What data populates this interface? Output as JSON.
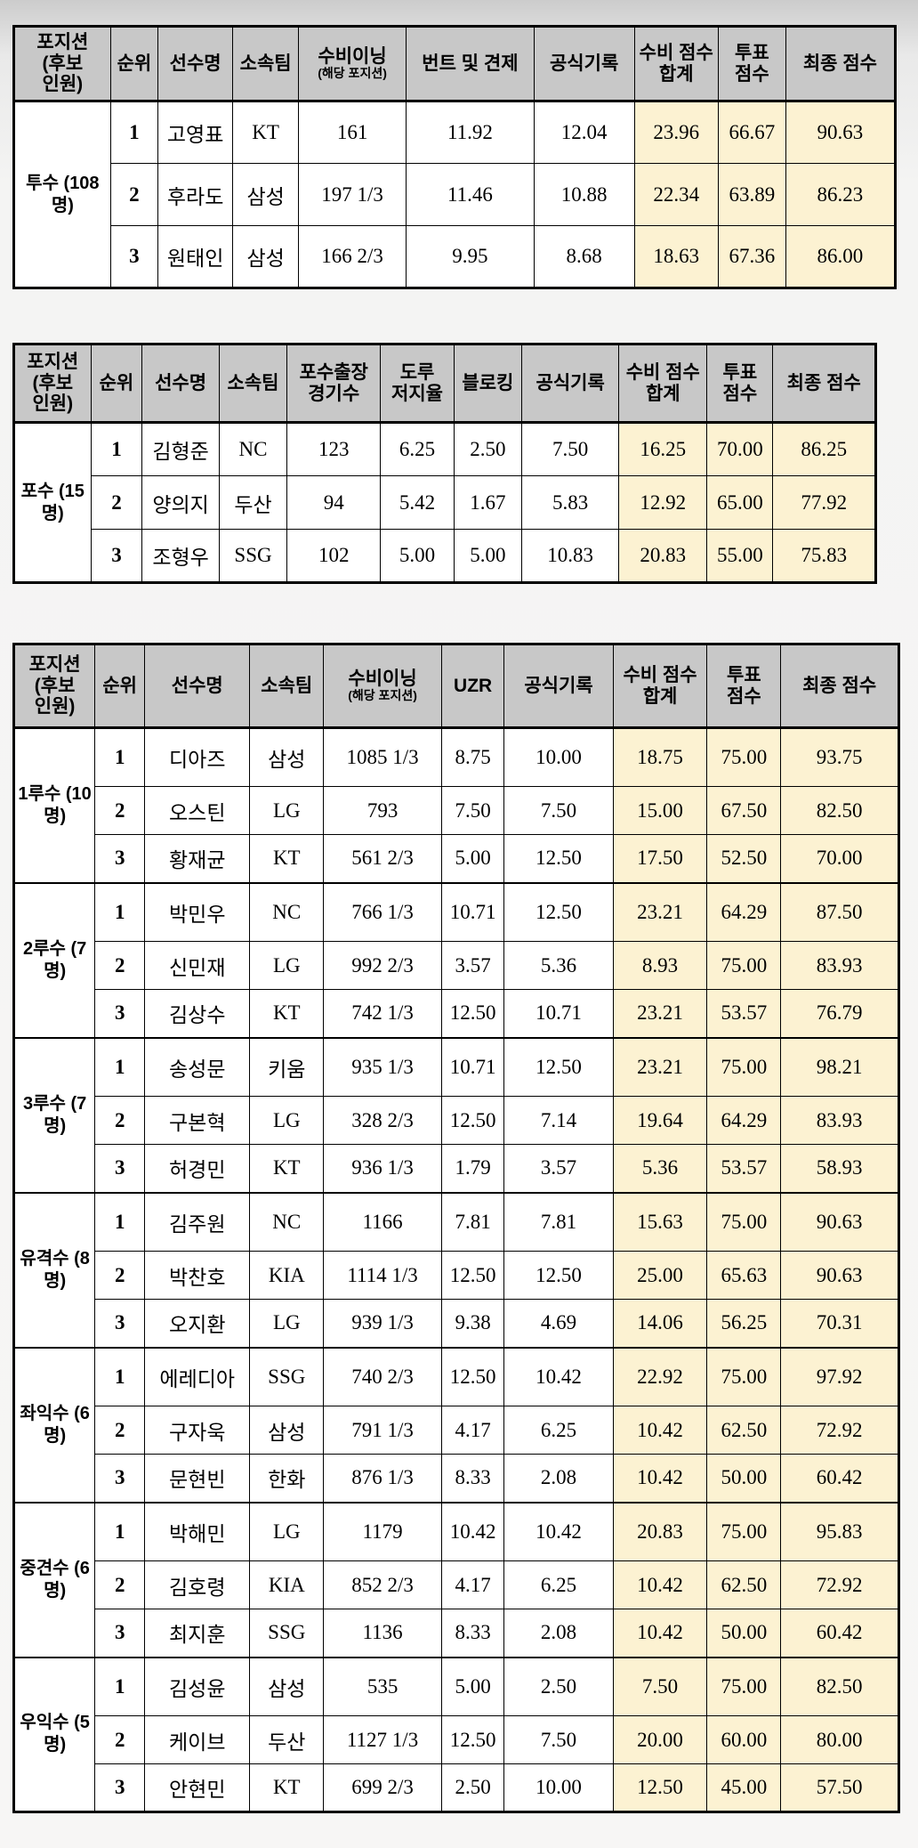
{
  "colors": {
    "header_bg": "#c8c8c8",
    "cream": "#fcf2d2",
    "border": "#000000",
    "cell_bg": "#ffffff"
  },
  "tables": [
    {
      "name": "pitcher-awards",
      "headers": [
        {
          "lines": [
            "포지션",
            "(후보",
            "인원)"
          ]
        },
        {
          "lines": [
            "순위"
          ]
        },
        {
          "lines": [
            "선수명"
          ]
        },
        {
          "lines": [
            "소속팀"
          ]
        },
        {
          "lines": [
            "수비이닝"
          ],
          "sub": "(해당 포지션)"
        },
        {
          "lines": [
            "번트 및 견제"
          ]
        },
        {
          "lines": [
            "공식기록"
          ]
        },
        {
          "lines": [
            "수비 점수",
            "합계"
          ]
        },
        {
          "lines": [
            "투표",
            "점수"
          ]
        },
        {
          "lines": [
            "최종 점수"
          ]
        }
      ],
      "groups": [
        {
          "position": "투수 (108명)",
          "rows": [
            [
              "1",
              "고영표",
              "KT",
              "161",
              "11.92",
              "12.04",
              "23.96",
              "66.67",
              "90.63"
            ],
            [
              "2",
              "후라도",
              "삼성",
              "197 1/3",
              "11.46",
              "10.88",
              "22.34",
              "63.89",
              "86.23"
            ],
            [
              "3",
              "원태인",
              "삼성",
              "166 2/3",
              "9.95",
              "8.68",
              "18.63",
              "67.36",
              "86.00"
            ]
          ]
        }
      ]
    },
    {
      "name": "catcher-awards",
      "headers": [
        {
          "lines": [
            "포지션",
            "(후보",
            "인원)"
          ]
        },
        {
          "lines": [
            "순위"
          ]
        },
        {
          "lines": [
            "선수명"
          ]
        },
        {
          "lines": [
            "소속팀"
          ]
        },
        {
          "lines": [
            "포수출장",
            "경기수"
          ]
        },
        {
          "lines": [
            "도루",
            "저지율"
          ]
        },
        {
          "lines": [
            "블로킹"
          ]
        },
        {
          "lines": [
            "공식기록"
          ]
        },
        {
          "lines": [
            "수비 점수",
            "합계"
          ]
        },
        {
          "lines": [
            "투표",
            "점수"
          ]
        },
        {
          "lines": [
            "최종 점수"
          ]
        }
      ],
      "groups": [
        {
          "position": "포수 (15명)",
          "rows": [
            [
              "1",
              "김형준",
              "NC",
              "123",
              "6.25",
              "2.50",
              "7.50",
              "16.25",
              "70.00",
              "86.25"
            ],
            [
              "2",
              "양의지",
              "두산",
              "94",
              "5.42",
              "1.67",
              "5.83",
              "12.92",
              "65.00",
              "77.92"
            ],
            [
              "3",
              "조형우",
              "SSG",
              "102",
              "5.00",
              "5.00",
              "10.83",
              "20.83",
              "55.00",
              "75.83"
            ]
          ]
        }
      ]
    },
    {
      "name": "fielder-awards",
      "headers": [
        {
          "lines": [
            "포지션",
            "(후보",
            "인원)"
          ]
        },
        {
          "lines": [
            "순위"
          ]
        },
        {
          "lines": [
            "선수명"
          ]
        },
        {
          "lines": [
            "소속팀"
          ]
        },
        {
          "lines": [
            "수비이닝"
          ],
          "sub": "(해당 포지션)"
        },
        {
          "lines": [
            "UZR"
          ]
        },
        {
          "lines": [
            "공식기록"
          ]
        },
        {
          "lines": [
            "수비 점수",
            "합계"
          ]
        },
        {
          "lines": [
            "투표",
            "점수"
          ]
        },
        {
          "lines": [
            "최종 점수"
          ]
        }
      ],
      "groups": [
        {
          "position": "1루수 (10명)",
          "rows": [
            [
              "1",
              "디아즈",
              "삼성",
              "1085 1/3",
              "8.75",
              "10.00",
              "18.75",
              "75.00",
              "93.75"
            ],
            [
              "2",
              "오스틴",
              "LG",
              "793",
              "7.50",
              "7.50",
              "15.00",
              "67.50",
              "82.50"
            ],
            [
              "3",
              "황재균",
              "KT",
              "561 2/3",
              "5.00",
              "12.50",
              "17.50",
              "52.50",
              "70.00"
            ]
          ]
        },
        {
          "position": "2루수 (7명)",
          "rows": [
            [
              "1",
              "박민우",
              "NC",
              "766 1/3",
              "10.71",
              "12.50",
              "23.21",
              "64.29",
              "87.50"
            ],
            [
              "2",
              "신민재",
              "LG",
              "992 2/3",
              "3.57",
              "5.36",
              "8.93",
              "75.00",
              "83.93"
            ],
            [
              "3",
              "김상수",
              "KT",
              "742 1/3",
              "12.50",
              "10.71",
              "23.21",
              "53.57",
              "76.79"
            ]
          ]
        },
        {
          "position": "3루수 (7명)",
          "rows": [
            [
              "1",
              "송성문",
              "키움",
              "935 1/3",
              "10.71",
              "12.50",
              "23.21",
              "75.00",
              "98.21"
            ],
            [
              "2",
              "구본혁",
              "LG",
              "328 2/3",
              "12.50",
              "7.14",
              "19.64",
              "64.29",
              "83.93"
            ],
            [
              "3",
              "허경민",
              "KT",
              "936 1/3",
              "1.79",
              "3.57",
              "5.36",
              "53.57",
              "58.93"
            ]
          ]
        },
        {
          "position": "유격수 (8명)",
          "rows": [
            [
              "1",
              "김주원",
              "NC",
              "1166",
              "7.81",
              "7.81",
              "15.63",
              "75.00",
              "90.63"
            ],
            [
              "2",
              "박찬호",
              "KIA",
              "1114 1/3",
              "12.50",
              "12.50",
              "25.00",
              "65.63",
              "90.63"
            ],
            [
              "3",
              "오지환",
              "LG",
              "939 1/3",
              "9.38",
              "4.69",
              "14.06",
              "56.25",
              "70.31"
            ]
          ]
        },
        {
          "position": "좌익수 (6명)",
          "rows": [
            [
              "1",
              "에레디아",
              "SSG",
              "740 2/3",
              "12.50",
              "10.42",
              "22.92",
              "75.00",
              "97.92"
            ],
            [
              "2",
              "구자욱",
              "삼성",
              "791 1/3",
              "4.17",
              "6.25",
              "10.42",
              "62.50",
              "72.92"
            ],
            [
              "3",
              "문현빈",
              "한화",
              "876 1/3",
              "8.33",
              "2.08",
              "10.42",
              "50.00",
              "60.42"
            ]
          ]
        },
        {
          "position": "중견수 (6명)",
          "rows": [
            [
              "1",
              "박해민",
              "LG",
              "1179",
              "10.42",
              "10.42",
              "20.83",
              "75.00",
              "95.83"
            ],
            [
              "2",
              "김호령",
              "KIA",
              "852 2/3",
              "4.17",
              "6.25",
              "10.42",
              "62.50",
              "72.92"
            ],
            [
              "3",
              "최지훈",
              "SSG",
              "1136",
              "8.33",
              "2.08",
              "10.42",
              "50.00",
              "60.42"
            ]
          ]
        },
        {
          "position": "우익수 (5명)",
          "rows": [
            [
              "1",
              "김성윤",
              "삼성",
              "535",
              "5.00",
              "2.50",
              "7.50",
              "75.00",
              "82.50"
            ],
            [
              "2",
              "케이브",
              "두산",
              "1127 1/3",
              "12.50",
              "7.50",
              "20.00",
              "60.00",
              "80.00"
            ],
            [
              "3",
              "안현민",
              "KT",
              "699 2/3",
              "2.50",
              "10.00",
              "12.50",
              "45.00",
              "57.50"
            ]
          ]
        }
      ]
    }
  ]
}
